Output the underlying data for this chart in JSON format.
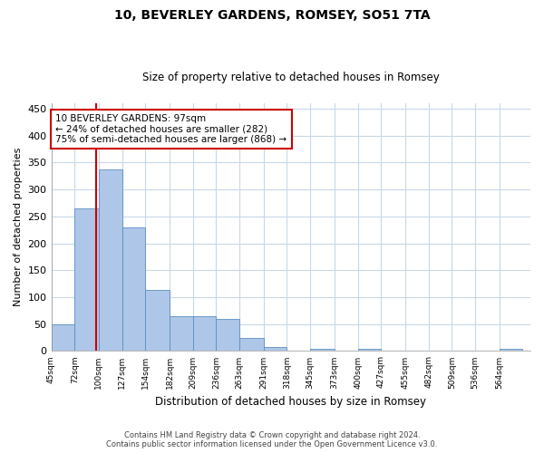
{
  "title": "10, BEVERLEY GARDENS, ROMSEY, SO51 7TA",
  "subtitle": "Size of property relative to detached houses in Romsey",
  "xlabel": "Distribution of detached houses by size in Romsey",
  "ylabel": "Number of detached properties",
  "property_size": 97,
  "annotation_line1": "10 BEVERLEY GARDENS: 97sqm",
  "annotation_line2": "← 24% of detached houses are smaller (282)",
  "annotation_line3": "75% of semi-detached houses are larger (868) →",
  "footer_line1": "Contains HM Land Registry data © Crown copyright and database right 2024.",
  "footer_line2": "Contains public sector information licensed under the Open Government Licence v3.0.",
  "bar_edges": [
    45,
    72,
    100,
    127,
    154,
    182,
    209,
    236,
    263,
    291,
    318,
    345,
    373,
    400,
    427,
    455,
    482,
    509,
    536,
    564,
    591
  ],
  "bar_heights": [
    50,
    265,
    338,
    230,
    113,
    65,
    65,
    60,
    24,
    7,
    0,
    4,
    0,
    4,
    0,
    0,
    0,
    0,
    0,
    4
  ],
  "bar_color": "#aec6e8",
  "bar_edge_color": "#5a8fc2",
  "vline_x": 97,
  "vline_color": "#cc0000",
  "annotation_box_color": "#cc0000",
  "background_color": "#ffffff",
  "grid_color": "#c8d8e8",
  "ylim": [
    0,
    460
  ],
  "xlim": [
    45,
    600
  ]
}
